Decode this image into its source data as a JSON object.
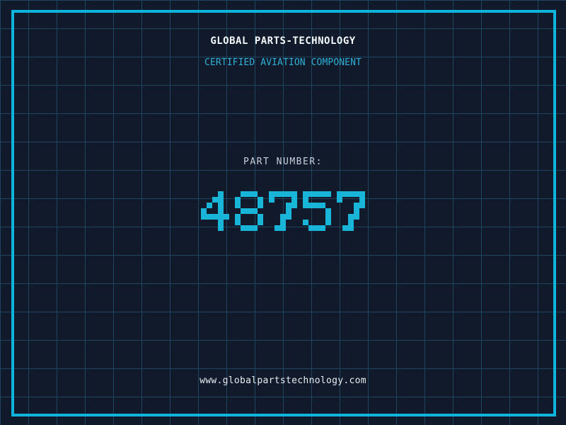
{
  "header": {
    "title": "GLOBAL PARTS-TECHNOLOGY",
    "subtitle": "CERTIFIED AVIATION COMPONENT"
  },
  "part": {
    "label": "PART NUMBER:",
    "number": "48757"
  },
  "footer": {
    "website": "www.globalpartstechnology.com"
  },
  "colors": {
    "background": "#101a2b",
    "grid_line": "#1e455d",
    "frame": "#0fb4dc",
    "title_text": "#f5f8fa",
    "subtitle_text": "#2fb0d6",
    "label_text": "#c9cfd8",
    "number_text": "#18b5d8",
    "footer_text": "#e9edf2"
  }
}
